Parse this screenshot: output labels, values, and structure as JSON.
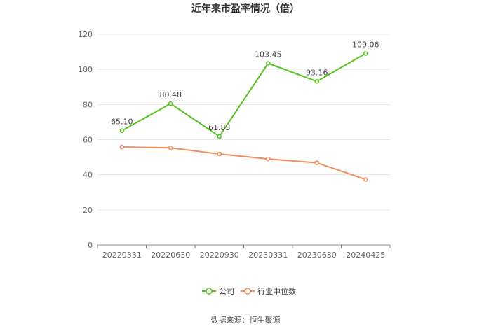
{
  "chart_data": {
    "type": "line",
    "title": "近年来市盈率情况（倍）",
    "categories": [
      "20220331",
      "20220630",
      "20220930",
      "20230331",
      "20230630",
      "20240425"
    ],
    "ylim": [
      0,
      120
    ],
    "yticks": [
      0,
      20,
      40,
      60,
      80,
      100,
      120
    ],
    "grid": true,
    "legend_position": "bottom-center",
    "series": [
      {
        "name": "公司",
        "color": "#52c41a",
        "values": [
          65.1,
          80.48,
          61.83,
          103.45,
          93.16,
          109.06
        ],
        "data_labels": [
          "65.10",
          "80.48",
          "61.83",
          "103.45",
          "93.16",
          "109.06"
        ]
      },
      {
        "name": "行业中位数",
        "color": "#f08c5a",
        "values": [
          55.8,
          55.3,
          51.8,
          49.0,
          46.8,
          37.3
        ]
      }
    ]
  },
  "source": "数据来源：恒生聚源"
}
